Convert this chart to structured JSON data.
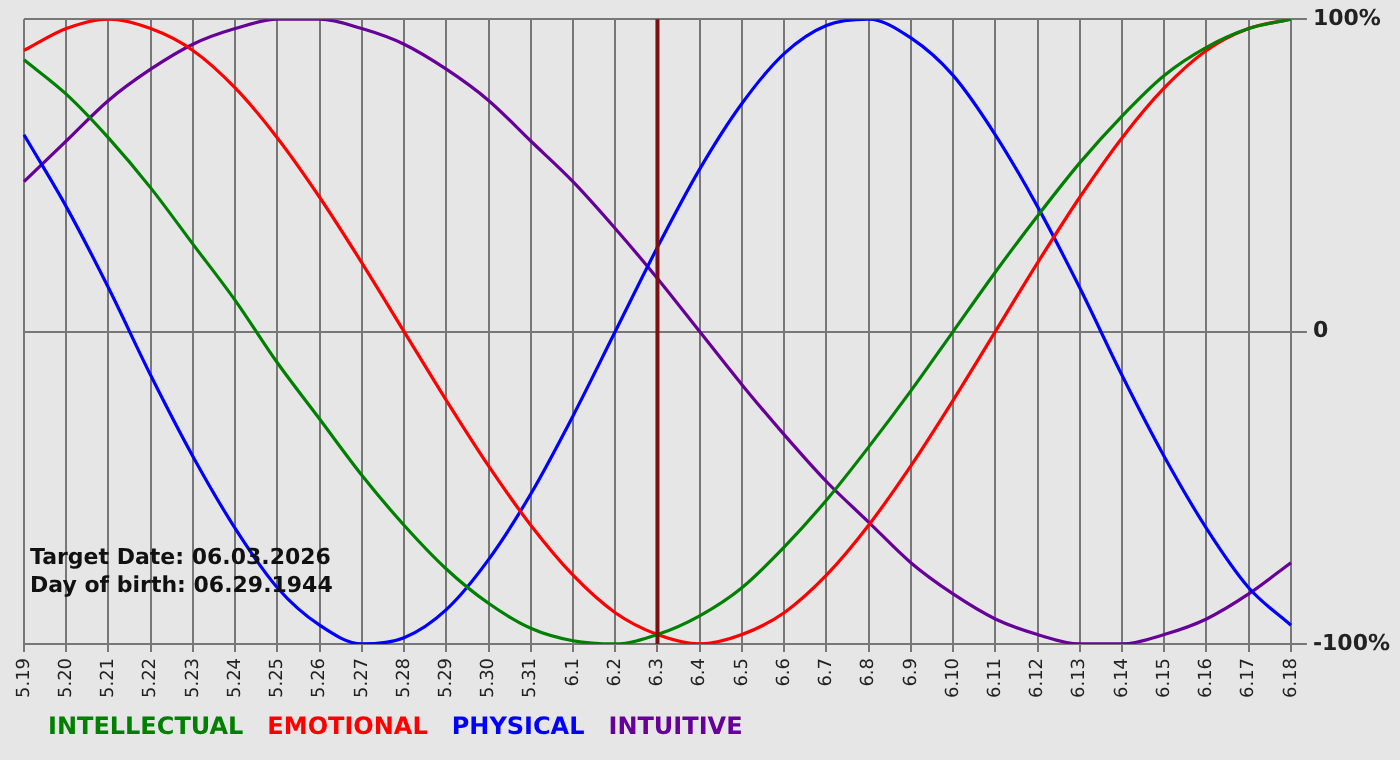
{
  "chart_data": {
    "type": "line",
    "categories": [
      "5.19",
      "5.20",
      "5.21",
      "5.22",
      "5.23",
      "5.24",
      "5.25",
      "5.26",
      "5.27",
      "5.28",
      "5.29",
      "5.30",
      "5.31",
      "6.1",
      "6.2",
      "6.3",
      "6.4",
      "6.5",
      "6.6",
      "6.7",
      "6.8",
      "6.9",
      "6.10",
      "6.11",
      "6.12",
      "6.13",
      "6.14",
      "6.15",
      "6.16",
      "6.17",
      "6.18"
    ],
    "series": [
      {
        "name": "INTELLECTUAL",
        "color": "#008000",
        "values": [
          87,
          76,
          62,
          46,
          28,
          10,
          -10,
          -28,
          -46,
          -62,
          -76,
          -87,
          -95,
          -99,
          -100,
          -97,
          -91,
          -82,
          -69,
          -54,
          -37,
          -19,
          0,
          19,
          37,
          54,
          69,
          82,
          91,
          97,
          100
        ]
      },
      {
        "name": "EMOTIONAL",
        "color": "#ff0000",
        "values": [
          90,
          97,
          100,
          97,
          90,
          78,
          62,
          43,
          22,
          0,
          -22,
          -43,
          -62,
          -78,
          -90,
          -97,
          -100,
          -97,
          -90,
          -78,
          -62,
          -43,
          -22,
          0,
          22,
          43,
          62,
          78,
          90,
          97,
          100
        ]
      },
      {
        "name": "PHYSICAL",
        "color": "#0000ff",
        "values": [
          63,
          40,
          14,
          -14,
          -40,
          -63,
          -82,
          -94,
          -100,
          -98,
          -89,
          -73,
          -52,
          -27,
          0,
          27,
          52,
          73,
          89,
          98,
          100,
          94,
          82,
          63,
          40,
          14,
          -14,
          -40,
          -63,
          -82,
          -94
        ]
      },
      {
        "name": "INTUITIVE",
        "color": "#660099",
        "values": [
          48,
          61,
          74,
          84,
          92,
          97,
          100,
          100,
          97,
          92,
          84,
          74,
          61,
          48,
          33,
          17,
          0,
          -17,
          -33,
          -48,
          -61,
          -74,
          -84,
          -92,
          -97,
          -100,
          -100,
          -97,
          -92,
          -84,
          -74
        ]
      }
    ],
    "ylim": [
      -100,
      100
    ],
    "yticks": [
      {
        "value": 100,
        "label": "100%"
      },
      {
        "value": 0,
        "label": "0"
      },
      {
        "value": -100,
        "label": "-100%"
      }
    ],
    "ref_lines": [
      {
        "axis": "x",
        "value": "6.3",
        "color": "#7a1010"
      }
    ],
    "annotations": [
      "Target Date: 06.03.2026",
      "Day of birth: 06.29.1944"
    ],
    "grid": true,
    "legend": "bottom",
    "marker": "none",
    "line_style": "solid"
  }
}
